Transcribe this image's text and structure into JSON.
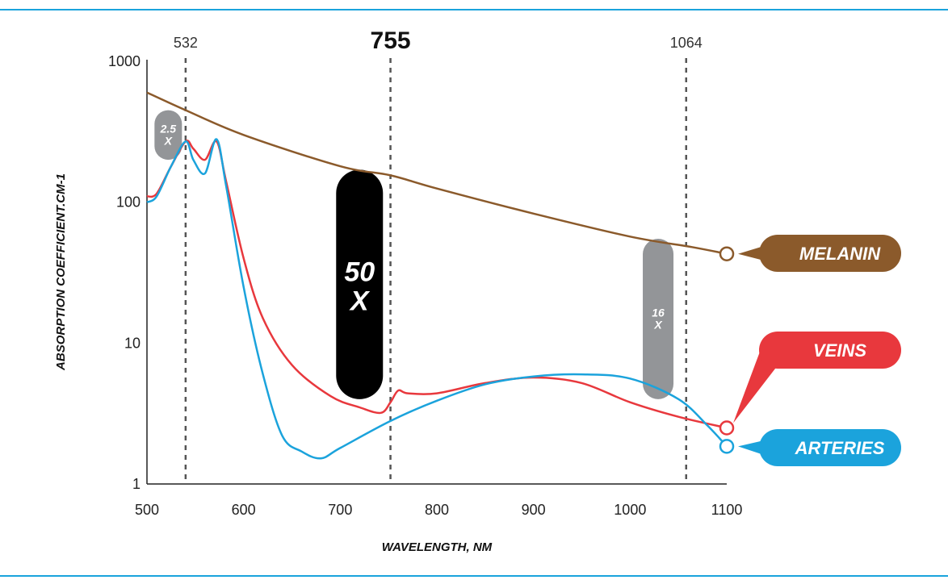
{
  "chart_data": {
    "type": "line",
    "xlabel": "WAVELENGTH, NM",
    "ylabel": "ABSORPTION COEFFICIENT.CM-1",
    "xlim": [
      500,
      1100
    ],
    "ylim": [
      1,
      1000
    ],
    "yscale": "log",
    "x_ticks": [
      "500",
      "600",
      "700",
      "800",
      "900",
      "1000",
      "1100"
    ],
    "y_ticks": [
      "1",
      "10",
      "100",
      "1000"
    ],
    "grid": false,
    "legend_placement": "right",
    "markers": [
      {
        "label": "532",
        "x": 540,
        "emphasis": false
      },
      {
        "label": "755",
        "x": 752,
        "emphasis": true
      },
      {
        "label": "1064",
        "x": 1058,
        "emphasis": false
      }
    ],
    "ratio_badges": [
      {
        "line1": "2.5",
        "line2": "X",
        "x": 522,
        "y_low": 200,
        "y_high": 450,
        "color": "#939598"
      },
      {
        "line1": "50",
        "line2": "X",
        "x": 720,
        "y_low": 4,
        "y_high": 170,
        "color": "#000000"
      },
      {
        "line1": "16",
        "line2": "X",
        "x": 1029,
        "y_low": 4,
        "y_high": 55,
        "color": "#939598"
      }
    ],
    "series": [
      {
        "name": "MELANIN",
        "color": "#8b5a2b",
        "x": [
          500,
          540,
          600,
          700,
          752,
          800,
          900,
          1000,
          1064,
          1100
        ],
        "y": [
          600,
          450,
          300,
          180,
          155,
          125,
          83,
          57,
          48,
          43
        ]
      },
      {
        "name": "VEINS",
        "color": "#e8383d",
        "x": [
          500,
          510,
          525,
          540,
          548,
          560,
          572,
          582,
          600,
          620,
          650,
          690,
          720,
          742,
          752,
          760,
          770,
          800,
          850,
          900,
          950,
          1000,
          1050,
          1100
        ],
        "y": [
          110,
          115,
          180,
          270,
          240,
          200,
          270,
          140,
          40,
          15,
          7,
          4.2,
          3.5,
          3.2,
          3.8,
          4.6,
          4.4,
          4.4,
          5.2,
          5.7,
          5.2,
          3.8,
          3.0,
          2.5
        ]
      },
      {
        "name": "ARTERIES",
        "color": "#1ba3dc",
        "x": [
          500,
          510,
          525,
          540,
          548,
          560,
          572,
          582,
          600,
          620,
          640,
          660,
          680,
          700,
          752,
          800,
          850,
          900,
          950,
          1000,
          1050,
          1080,
          1100
        ],
        "y": [
          100,
          110,
          180,
          270,
          200,
          160,
          280,
          130,
          25,
          6,
          2.2,
          1.7,
          1.52,
          1.8,
          2.8,
          3.9,
          5.1,
          5.8,
          6.0,
          5.6,
          4.0,
          2.6,
          1.85
        ]
      }
    ]
  }
}
